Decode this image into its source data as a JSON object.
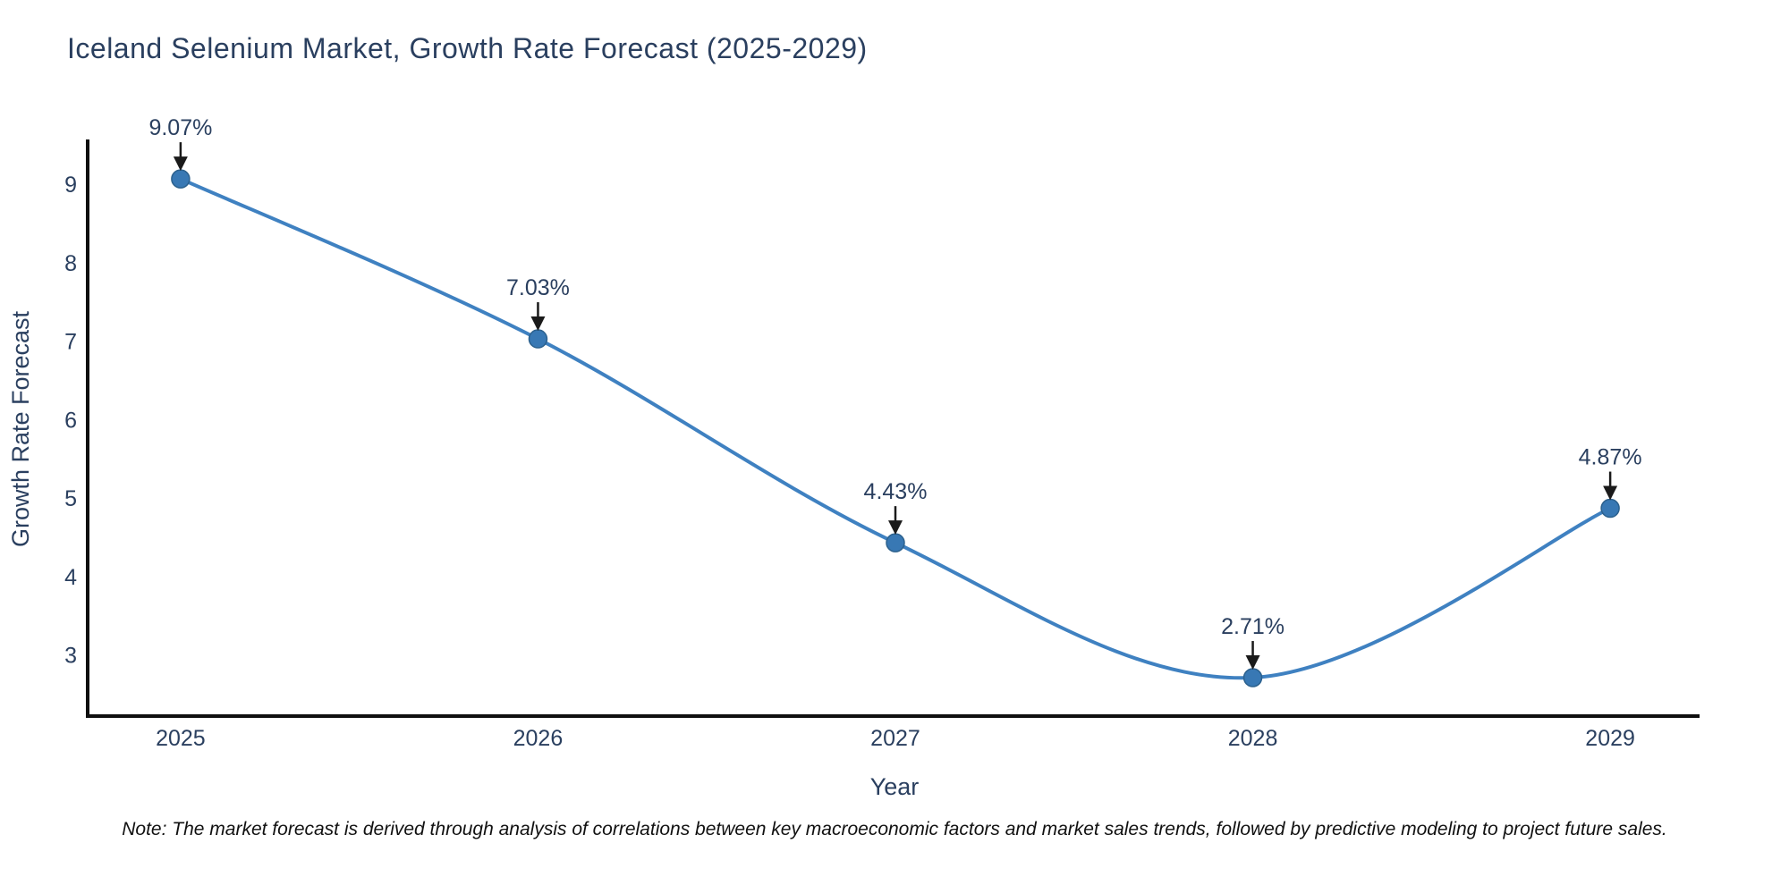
{
  "chart_data": {
    "type": "line",
    "title": "Iceland Selenium Market, Growth Rate Forecast (2025-2029)",
    "xlabel": "Year",
    "ylabel": "Growth Rate Forecast",
    "categories": [
      "2025",
      "2026",
      "2027",
      "2028",
      "2029"
    ],
    "x": [
      2025,
      2026,
      2027,
      2028,
      2029
    ],
    "values": [
      9.07,
      7.03,
      4.43,
      2.71,
      4.87
    ],
    "point_labels": [
      "9.07%",
      "7.03%",
      "4.43%",
      "2.71%",
      "4.87%"
    ],
    "yticks": [
      3,
      4,
      5,
      6,
      7,
      8,
      9
    ],
    "xlim": [
      2024.74,
      2029.25
    ],
    "ylim": [
      2.22,
      9.55
    ],
    "line_shape": "spline",
    "grid": false,
    "legend": "none",
    "line_color": "#3f81c1",
    "marker_color": "#3878b4",
    "marker_edge_color": "#2c618e",
    "arrow_color": "#1a1a1a",
    "axis_color": "#0f0f0f",
    "label_color": "#2a3f5f",
    "note": "Note: The market forecast is derived through analysis of correlations between key macroeconomic factors and market sales trends, followed by predictive modeling to project future sales."
  }
}
